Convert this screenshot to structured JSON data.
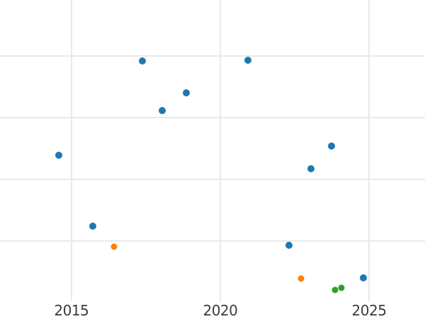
{
  "figure": {
    "background": "#ffffff",
    "gridline_color": "#e9e9e9",
    "tick_label_color": "#3b3b3b"
  },
  "chart_data": {
    "type": "scatter",
    "title": "",
    "xlabel": "",
    "ylabel": "",
    "grid": true,
    "legend_position": "none",
    "x_ticks": [
      2015,
      2020,
      2025
    ],
    "x_tick_labels": [
      "2015",
      "2020",
      "2025"
    ],
    "xlim": [
      2012.6,
      2026.88
    ],
    "y_gridlines": [
      1,
      2,
      3,
      4
    ],
    "ylim": [
      0.025,
      4.912
    ],
    "y_axis_note": "no y-axis tick labels visible in screenshot; y values estimated in gridline units (1 unit = one horizontal gridline spacing, 0 at plot bottom)",
    "series": [
      {
        "name": "blue",
        "color": "#1f77b4",
        "marker_px": 10,
        "points": [
          {
            "x": 2014.58,
            "y": 2.39
          },
          {
            "x": 2015.72,
            "y": 1.24
          },
          {
            "x": 2017.38,
            "y": 3.92
          },
          {
            "x": 2018.05,
            "y": 3.12
          },
          {
            "x": 2018.86,
            "y": 3.4
          },
          {
            "x": 2020.93,
            "y": 3.93
          },
          {
            "x": 2022.3,
            "y": 0.93
          },
          {
            "x": 2023.06,
            "y": 2.18
          },
          {
            "x": 2023.73,
            "y": 2.54
          },
          {
            "x": 2024.82,
            "y": 0.41
          }
        ]
      },
      {
        "name": "orange",
        "color": "#ff7f0e",
        "marker_px": 9,
        "points": [
          {
            "x": 2016.43,
            "y": 0.91
          },
          {
            "x": 2022.72,
            "y": 0.39
          }
        ]
      },
      {
        "name": "green",
        "color": "#2ca02c",
        "marker_px": 9,
        "points": [
          {
            "x": 2023.85,
            "y": 0.21
          },
          {
            "x": 2024.07,
            "y": 0.24
          }
        ]
      }
    ]
  }
}
